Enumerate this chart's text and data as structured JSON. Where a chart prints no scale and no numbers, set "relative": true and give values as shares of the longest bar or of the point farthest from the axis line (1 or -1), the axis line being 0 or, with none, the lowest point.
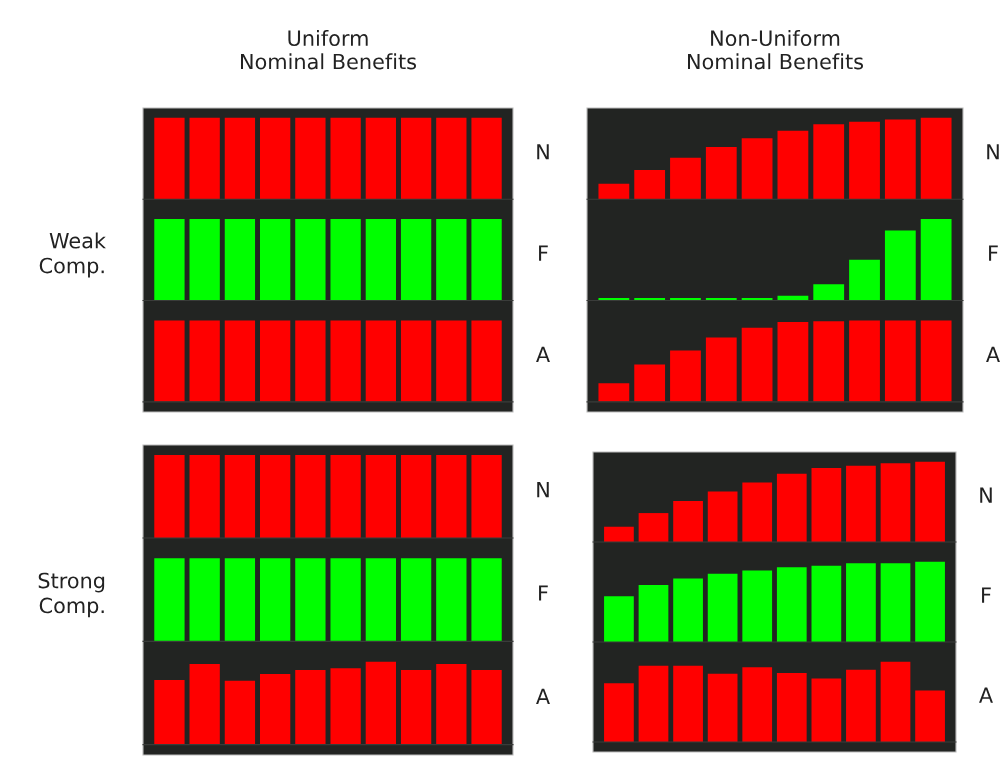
{
  "chart_data": [
    {
      "type": "bar",
      "relative": true,
      "title": "Uniform\nNominal Benefits",
      "y2label": "N",
      "categories": [
        null,
        null,
        null,
        null,
        null,
        null,
        null,
        null,
        null,
        null
      ],
      "color": "#ff0000",
      "values": [
        1,
        1,
        1,
        1,
        1,
        1,
        1,
        1,
        1,
        1
      ]
    },
    {
      "type": "bar",
      "relative": true,
      "ylabel": "Weak\nComp.",
      "y2label": "F",
      "categories": [
        null,
        null,
        null,
        null,
        null,
        null,
        null,
        null,
        null,
        null
      ],
      "color": "#00ff00",
      "values": [
        1,
        1,
        1,
        1,
        1,
        1,
        1,
        1,
        1,
        1
      ]
    },
    {
      "type": "bar",
      "relative": true,
      "y2label": "A",
      "categories": [
        null,
        null,
        null,
        null,
        null,
        null,
        null,
        null,
        null,
        null
      ],
      "color": "#ff0000",
      "values": [
        1,
        1,
        1,
        1,
        1,
        1,
        1,
        1,
        1,
        1
      ]
    },
    {
      "type": "bar",
      "relative": true,
      "title": "Non-Uniform\nNominal Benefits",
      "y2label": "N",
      "categories": [
        null,
        null,
        null,
        null,
        null,
        null,
        null,
        null,
        null,
        null
      ],
      "color": "#ff0000",
      "values": [
        0.19,
        0.36,
        0.51,
        0.64,
        0.75,
        0.84,
        0.92,
        0.95,
        0.98,
        1
      ]
    },
    {
      "type": "bar",
      "relative": true,
      "y2label": "F",
      "categories": [
        null,
        null,
        null,
        null,
        null,
        null,
        null,
        null,
        null,
        null
      ],
      "color": "#00ff00",
      "values": [
        0.03,
        0.03,
        0.03,
        0.03,
        0.03,
        0.06,
        0.2,
        0.5,
        0.86,
        1
      ]
    },
    {
      "type": "bar",
      "relative": true,
      "y2label": "A",
      "categories": [
        null,
        null,
        null,
        null,
        null,
        null,
        null,
        null,
        null,
        null
      ],
      "color": "#ff0000",
      "values": [
        0.23,
        0.46,
        0.63,
        0.79,
        0.91,
        0.98,
        0.99,
        1,
        1,
        1
      ]
    },
    {
      "type": "bar",
      "relative": true,
      "y2label": "N",
      "categories": [
        null,
        null,
        null,
        null,
        null,
        null,
        null,
        null,
        null,
        null
      ],
      "color": "#ff0000",
      "values": [
        1,
        1,
        1,
        1,
        1,
        1,
        1,
        1,
        1,
        1
      ]
    },
    {
      "type": "bar",
      "relative": true,
      "ylabel": "Strong\nComp.",
      "y2label": "F",
      "categories": [
        null,
        null,
        null,
        null,
        null,
        null,
        null,
        null,
        null,
        null
      ],
      "color": "#00ff00",
      "values": [
        1,
        1,
        1,
        1,
        1,
        1,
        1,
        1,
        1,
        1
      ]
    },
    {
      "type": "bar",
      "relative": true,
      "y2label": "A",
      "categories": [
        null,
        null,
        null,
        null,
        null,
        null,
        null,
        null,
        null,
        null
      ],
      "color": "#ff0000",
      "values": [
        0.78,
        0.97,
        0.77,
        0.85,
        0.9,
        0.92,
        1,
        0.9,
        0.97,
        0.9
      ]
    },
    {
      "type": "bar",
      "relative": true,
      "y2label": "N",
      "categories": [
        null,
        null,
        null,
        null,
        null,
        null,
        null,
        null,
        null,
        null
      ],
      "color": "#ff0000",
      "values": [
        0.19,
        0.36,
        0.51,
        0.63,
        0.74,
        0.85,
        0.92,
        0.95,
        0.98,
        1
      ]
    },
    {
      "type": "bar",
      "relative": true,
      "y2label": "F",
      "categories": [
        null,
        null,
        null,
        null,
        null,
        null,
        null,
        null,
        null,
        null
      ],
      "color": "#00ff00",
      "values": [
        0.57,
        0.71,
        0.79,
        0.85,
        0.89,
        0.93,
        0.95,
        0.98,
        0.98,
        1
      ]
    },
    {
      "type": "bar",
      "relative": true,
      "y2label": "A",
      "categories": [
        null,
        null,
        null,
        null,
        null,
        null,
        null,
        null,
        null,
        null
      ],
      "color": "#ff0000",
      "values": [
        0.73,
        0.95,
        0.95,
        0.85,
        0.93,
        0.86,
        0.79,
        0.9,
        1,
        0.64
      ]
    }
  ]
}
